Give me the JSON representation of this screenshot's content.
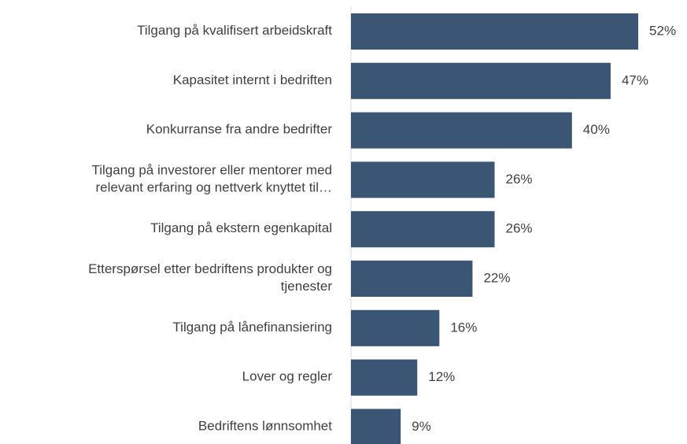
{
  "chart_data": {
    "type": "bar",
    "orientation": "horizontal",
    "categories": [
      "Tilgang på kvalifisert arbeidskraft",
      "Kapasitet internt i bedriften",
      "Konkurranse fra andre bedrifter",
      "Tilgang på investorer eller mentorer med\nrelevant erfaring og nettverk knyttet til…",
      "Tilgang på ekstern egenkapital",
      "Etterspørsel etter bedriftens produkter og\ntjenester",
      "Tilgang på lånefinansiering",
      "Lover og regler",
      "Bedriftens lønnsomhet"
    ],
    "values": [
      52,
      47,
      40,
      26,
      26,
      22,
      16,
      12,
      9
    ],
    "value_labels": [
      "52%",
      "47%",
      "40%",
      "26%",
      "26%",
      "22%",
      "16%",
      "12%",
      "9%"
    ],
    "color": "#3a5674"
  }
}
